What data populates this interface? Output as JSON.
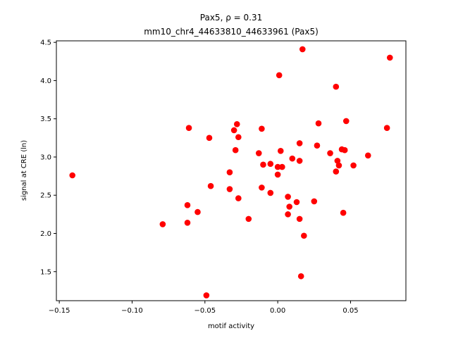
{
  "chart_data": {
    "type": "scatter",
    "title_line1": "Pax5, ρ = 0.31",
    "title_line2": "mm10_chr4_44633810_44633961 (Pax5)",
    "xlabel": "motif activity",
    "ylabel": "signal at CRE (ln)",
    "xlim": [
      -0.152,
      0.088
    ],
    "ylim": [
      1.12,
      4.52
    ],
    "xticks": [
      -0.15,
      -0.1,
      -0.05,
      0.0,
      0.05
    ],
    "xtick_labels": [
      "−0.15",
      "−0.10",
      "−0.05",
      "0.00",
      "0.05"
    ],
    "yticks": [
      1.5,
      2.0,
      2.5,
      3.0,
      3.5,
      4.0,
      4.5
    ],
    "ytick_labels": [
      "1.5",
      "2.0",
      "2.5",
      "3.0",
      "3.5",
      "4.0",
      "4.5"
    ],
    "grid": false,
    "marker_color": "#ff0000",
    "points": [
      {
        "x": -0.141,
        "y": 2.76
      },
      {
        "x": -0.079,
        "y": 2.12
      },
      {
        "x": -0.062,
        "y": 2.14
      },
      {
        "x": -0.062,
        "y": 2.37
      },
      {
        "x": -0.061,
        "y": 3.38
      },
      {
        "x": -0.055,
        "y": 2.28
      },
      {
        "x": -0.049,
        "y": 1.19
      },
      {
        "x": -0.047,
        "y": 3.25
      },
      {
        "x": -0.046,
        "y": 2.62
      },
      {
        "x": -0.033,
        "y": 2.8
      },
      {
        "x": -0.033,
        "y": 2.58
      },
      {
        "x": -0.03,
        "y": 3.35
      },
      {
        "x": -0.029,
        "y": 3.09
      },
      {
        "x": -0.028,
        "y": 3.43
      },
      {
        "x": -0.027,
        "y": 3.26
      },
      {
        "x": -0.027,
        "y": 2.46
      },
      {
        "x": -0.02,
        "y": 2.19
      },
      {
        "x": -0.013,
        "y": 3.05
      },
      {
        "x": -0.011,
        "y": 2.6
      },
      {
        "x": -0.011,
        "y": 3.37
      },
      {
        "x": -0.01,
        "y": 2.9
      },
      {
        "x": -0.005,
        "y": 2.91
      },
      {
        "x": -0.005,
        "y": 2.53
      },
      {
        "x": 0.0,
        "y": 2.87
      },
      {
        "x": 0.0,
        "y": 2.77
      },
      {
        "x": 0.001,
        "y": 4.07
      },
      {
        "x": 0.002,
        "y": 3.08
      },
      {
        "x": 0.003,
        "y": 2.87
      },
      {
        "x": 0.007,
        "y": 2.48
      },
      {
        "x": 0.007,
        "y": 2.25
      },
      {
        "x": 0.008,
        "y": 2.35
      },
      {
        "x": 0.01,
        "y": 2.98
      },
      {
        "x": 0.013,
        "y": 2.41
      },
      {
        "x": 0.015,
        "y": 3.18
      },
      {
        "x": 0.015,
        "y": 2.95
      },
      {
        "x": 0.015,
        "y": 2.19
      },
      {
        "x": 0.016,
        "y": 1.44
      },
      {
        "x": 0.017,
        "y": 4.41
      },
      {
        "x": 0.018,
        "y": 1.97
      },
      {
        "x": 0.025,
        "y": 2.42
      },
      {
        "x": 0.027,
        "y": 3.15
      },
      {
        "x": 0.028,
        "y": 3.44
      },
      {
        "x": 0.036,
        "y": 3.05
      },
      {
        "x": 0.04,
        "y": 3.92
      },
      {
        "x": 0.04,
        "y": 2.81
      },
      {
        "x": 0.041,
        "y": 2.95
      },
      {
        "x": 0.042,
        "y": 2.89
      },
      {
        "x": 0.044,
        "y": 3.1
      },
      {
        "x": 0.045,
        "y": 2.27
      },
      {
        "x": 0.046,
        "y": 3.09
      },
      {
        "x": 0.047,
        "y": 3.47
      },
      {
        "x": 0.052,
        "y": 2.89
      },
      {
        "x": 0.062,
        "y": 3.02
      },
      {
        "x": 0.075,
        "y": 3.38
      },
      {
        "x": 0.077,
        "y": 4.3
      }
    ]
  }
}
